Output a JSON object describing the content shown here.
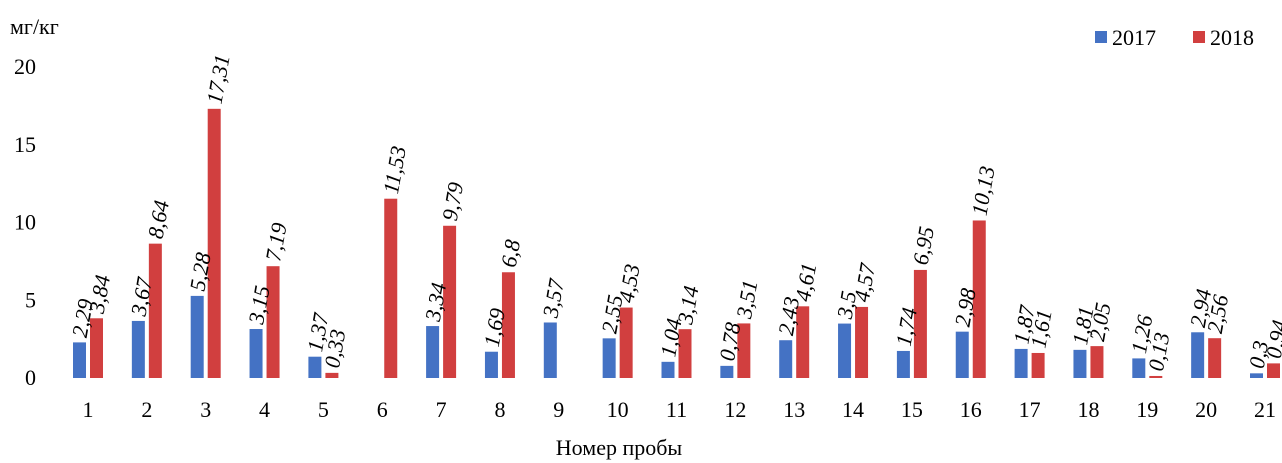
{
  "chart_data": {
    "type": "bar",
    "ylabel": "мг/кг",
    "xlabel": "Номер пробы",
    "ylim": [
      0,
      20
    ],
    "yticks": [
      "0",
      "5",
      "10",
      "15",
      "20"
    ],
    "grid": false,
    "legend_position": "top-right",
    "categories": [
      "1",
      "2",
      "3",
      "4",
      "5",
      "6",
      "7",
      "8",
      "9",
      "10",
      "11",
      "12",
      "13",
      "14",
      "15",
      "16",
      "17",
      "18",
      "19",
      "20",
      "21"
    ],
    "series": [
      {
        "name": "2017",
        "color": "#4472C4",
        "values": [
          2.29,
          3.67,
          5.28,
          3.15,
          1.37,
          null,
          3.34,
          1.69,
          3.57,
          2.55,
          1.04,
          0.78,
          2.43,
          3.5,
          1.74,
          2.98,
          1.87,
          1.81,
          1.26,
          2.94,
          0.3
        ],
        "labels": [
          "2,29",
          "3,67",
          "5,28",
          "3,15",
          "1,37",
          "",
          "3,34",
          "1,69",
          "3,57",
          "2,55",
          "1,04",
          "0,78",
          "2,43",
          "3,5",
          "1,74",
          "2,98",
          "1,87",
          "1,81",
          "1,26",
          "2,94",
          "0,3"
        ]
      },
      {
        "name": "2018",
        "color": "#D13F3F",
        "values": [
          3.84,
          8.64,
          17.31,
          7.19,
          0.33,
          11.53,
          9.79,
          6.8,
          null,
          4.53,
          3.14,
          3.51,
          4.61,
          4.57,
          6.95,
          10.13,
          1.61,
          2.05,
          0.13,
          2.56,
          0.94
        ],
        "labels": [
          "3,84",
          "8,64",
          "17,31",
          "7,19",
          "0,33",
          "11,53",
          "9,79",
          "6,8",
          "",
          "4,53",
          "3,14",
          "3,51",
          "4,61",
          "4,57",
          "6,95",
          "10,13",
          "1,61",
          "2,05",
          "0,13",
          "2,56",
          "0,94"
        ]
      }
    ]
  }
}
